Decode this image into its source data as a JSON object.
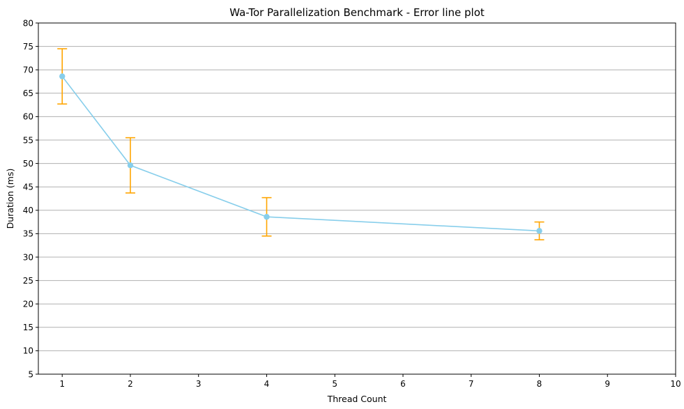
{
  "chart_data": {
    "type": "line",
    "title": "Wa-Tor Parallelization Benchmark - Error line plot",
    "xlabel": "Thread Count",
    "ylabel": "Duration (ms)",
    "xlim": [
      0.65,
      10
    ],
    "ylim": [
      5,
      80
    ],
    "xticks": [
      "1",
      "2",
      "3",
      "4",
      "5",
      "6",
      "7",
      "8",
      "9",
      "10"
    ],
    "yticks": [
      "5",
      "10",
      "15",
      "20",
      "25",
      "30",
      "35",
      "40",
      "45",
      "50",
      "55",
      "60",
      "65",
      "70",
      "75",
      "80"
    ],
    "grid": "horizontal",
    "series": [
      {
        "x": [
          1,
          2,
          4,
          8
        ],
        "y": [
          68.6,
          49.6,
          38.6,
          35.6
        ],
        "error": [
          5.9,
          5.9,
          4.1,
          1.9
        ],
        "line_color": "#87CEEB",
        "marker_color": "#87CEEB",
        "error_color": "#FFA500"
      }
    ]
  }
}
